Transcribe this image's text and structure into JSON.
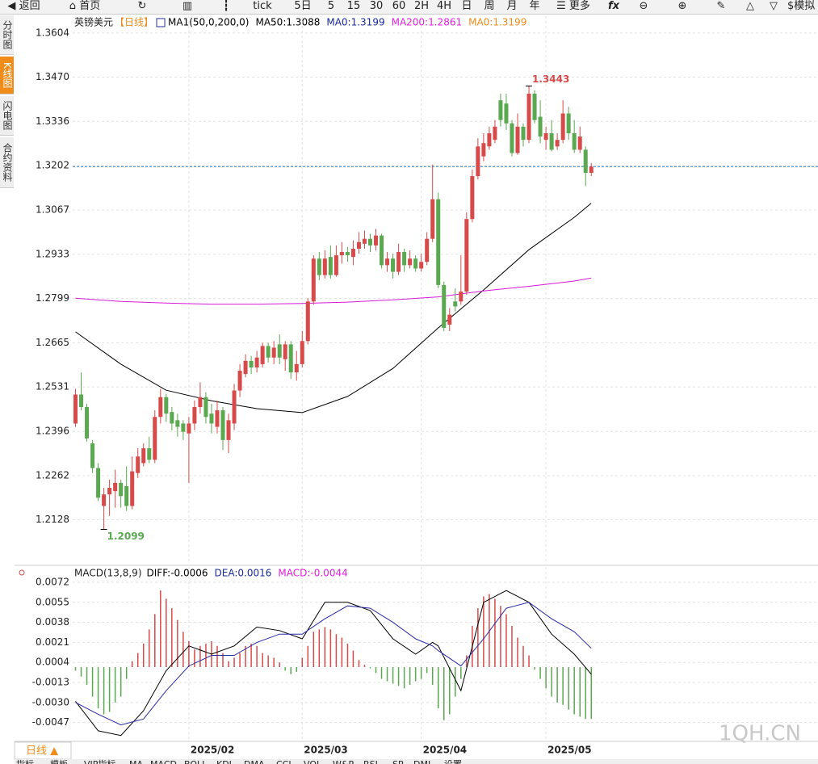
{
  "toolbar": {
    "back": "返回",
    "home": "首页",
    "tick": "tick",
    "periods": [
      "5日",
      "5",
      "15",
      "30",
      "60",
      "2H",
      "4H",
      "日",
      "周",
      "月",
      "年"
    ],
    "more": "更多",
    "sim": "模拟"
  },
  "sidebar": [
    "分时图",
    "K线图",
    "闪电图",
    "合约资料"
  ],
  "chart_data": [
    {
      "type": "candlestick",
      "title": "英镑美元",
      "subtitle": "【日线】",
      "indicator_labels": [
        {
          "text": "MA1(50,0,200,0)",
          "color": "#000000"
        },
        {
          "text": "MA50:1.3088",
          "color": "#000000"
        },
        {
          "text": "MA0:1.3199",
          "color": "#1a2a9a"
        },
        {
          "text": "MA200:1.2861",
          "color": "#e020e0"
        },
        {
          "text": "MA0:1.3199",
          "color": "#f08c1a"
        }
      ],
      "up_color": "#d84a4a",
      "down_color": "#5aa84f",
      "open": [
        1.242,
        1.2508,
        1.247,
        1.236,
        1.2285,
        1.217,
        1.2205,
        1.2215,
        1.224,
        1.223,
        1.217,
        1.227,
        1.23,
        1.2345,
        1.231,
        1.244,
        1.25,
        1.2455,
        1.243,
        1.242,
        1.239,
        1.242,
        1.247,
        1.25,
        1.245,
        1.241,
        1.246,
        1.237,
        1.242,
        1.252,
        1.257,
        1.261,
        1.259,
        1.26,
        1.2655,
        1.262,
        1.266,
        1.2615,
        1.266,
        1.2575,
        1.26,
        1.267,
        1.279,
        1.292,
        1.287,
        1.2925,
        1.287,
        1.293,
        1.294,
        1.2925,
        1.295,
        1.2965,
        1.298,
        1.296,
        1.299,
        1.29,
        1.292,
        1.288,
        1.294,
        1.29,
        1.292,
        1.289,
        1.291,
        1.298,
        1.31,
        1.284,
        1.272,
        1.279,
        1.279,
        1.282,
        1.304,
        1.317,
        1.323,
        1.326,
        1.328,
        1.34,
        1.339,
        1.333,
        1.324,
        1.332,
        1.328,
        1.342,
        1.335,
        1.328,
        1.33,
        1.326,
        1.328,
        1.336,
        1.33,
        1.325,
        1.325,
        1.318
      ],
      "high": [
        1.2525,
        1.2575,
        1.248,
        1.237,
        1.23,
        1.2225,
        1.225,
        1.228,
        1.225,
        1.229,
        1.232,
        1.2345,
        1.236,
        1.238,
        1.246,
        1.2525,
        1.251,
        1.247,
        1.245,
        1.243,
        1.244,
        1.249,
        1.2545,
        1.2515,
        1.248,
        1.249,
        1.247,
        1.245,
        1.254,
        1.26,
        1.263,
        1.2625,
        1.264,
        1.2665,
        1.2665,
        1.267,
        1.269,
        1.267,
        1.267,
        1.264,
        1.27,
        1.28,
        1.293,
        1.294,
        1.2945,
        1.296,
        1.296,
        1.297,
        1.2955,
        1.2975,
        1.3,
        1.3005,
        1.2995,
        1.301,
        1.2995,
        1.294,
        1.2935,
        1.2965,
        1.295,
        1.2945,
        1.293,
        1.2935,
        1.3,
        1.3205,
        1.312,
        1.285,
        1.277,
        1.283,
        1.293,
        1.306,
        1.319,
        1.3285,
        1.33,
        1.332,
        1.334,
        1.342,
        1.342,
        1.334,
        1.336,
        1.333,
        1.3443,
        1.343,
        1.34,
        1.332,
        1.334,
        1.33,
        1.34,
        1.338,
        1.334,
        1.332,
        1.326,
        1.321
      ],
      "low": [
        1.241,
        1.246,
        1.2365,
        1.227,
        1.2185,
        1.2099,
        1.214,
        1.2165,
        1.2165,
        1.2155,
        1.216,
        1.2255,
        1.229,
        1.23,
        1.23,
        1.242,
        1.2425,
        1.24,
        1.238,
        1.237,
        1.224,
        1.24,
        1.245,
        1.242,
        1.239,
        1.239,
        1.234,
        1.233,
        1.24,
        1.25,
        1.256,
        1.257,
        1.2575,
        1.259,
        1.2605,
        1.26,
        1.26,
        1.258,
        1.2555,
        1.255,
        1.259,
        1.266,
        1.278,
        1.2855,
        1.286,
        1.286,
        1.2865,
        1.2905,
        1.291,
        1.29,
        1.2935,
        1.295,
        1.294,
        1.2945,
        1.289,
        1.288,
        1.286,
        1.287,
        1.288,
        1.289,
        1.288,
        1.288,
        1.29,
        1.297,
        1.283,
        1.27,
        1.27,
        1.276,
        1.278,
        1.281,
        1.303,
        1.316,
        1.3215,
        1.325,
        1.327,
        1.332,
        1.331,
        1.323,
        1.3235,
        1.326,
        1.327,
        1.333,
        1.327,
        1.325,
        1.3245,
        1.325,
        1.327,
        1.328,
        1.324,
        1.324,
        1.314,
        1.317
      ],
      "close": [
        1.2508,
        1.247,
        1.2375,
        1.2285,
        1.2195,
        1.2205,
        1.2225,
        1.224,
        1.22,
        1.217,
        1.2275,
        1.232,
        1.2345,
        1.231,
        1.244,
        1.25,
        1.245,
        1.242,
        1.241,
        1.2395,
        1.242,
        1.247,
        1.25,
        1.244,
        1.242,
        1.246,
        1.237,
        1.243,
        1.252,
        1.258,
        1.261,
        1.259,
        1.262,
        1.2655,
        1.262,
        1.265,
        1.262,
        1.266,
        1.2575,
        1.26,
        1.267,
        1.279,
        1.292,
        1.287,
        1.292,
        1.287,
        1.293,
        1.294,
        1.293,
        1.295,
        1.297,
        1.298,
        1.296,
        1.299,
        1.29,
        1.292,
        1.288,
        1.294,
        1.29,
        1.292,
        1.289,
        1.291,
        1.298,
        1.31,
        1.284,
        1.271,
        1.275,
        1.2775,
        1.282,
        1.304,
        1.317,
        1.326,
        1.327,
        1.33,
        1.332,
        1.334,
        1.333,
        1.324,
        1.332,
        1.328,
        1.342,
        1.334,
        1.329,
        1.33,
        1.325,
        1.328,
        1.336,
        1.33,
        1.325,
        1.329,
        1.318,
        1.3199
      ],
      "ma_lines": [
        {
          "color": "#000000",
          "x": [
            0,
            8,
            16,
            24,
            32,
            40,
            48,
            56,
            64,
            72,
            80,
            88,
            91
          ],
          "values": [
            1.2698,
            1.26,
            1.2521,
            1.2489,
            1.2465,
            1.2453,
            1.2502,
            1.2587,
            1.271,
            1.2825,
            1.2947,
            1.3045,
            1.3088
          ]
        },
        {
          "color": "#d81ad8",
          "x": [
            0,
            8,
            16,
            24,
            32,
            40,
            48,
            56,
            64,
            72,
            80,
            88,
            91
          ],
          "values": [
            1.28,
            1.279,
            1.2785,
            1.2782,
            1.2782,
            1.2784,
            1.2788,
            1.2795,
            1.2804,
            1.2822,
            1.2836,
            1.2852,
            1.2861
          ]
        }
      ],
      "price_line": 1.3199,
      "price_line_color": "#2a7fc0",
      "high_mark": {
        "x": 80,
        "value": 1.3443,
        "color": "#d84a4a"
      },
      "low_mark": {
        "x": 5,
        "value": 1.2099,
        "color": "#5aa84f"
      },
      "xlim": [
        -0.5,
        131
      ],
      "ylim": [
        1.1995,
        1.3655
      ],
      "yticks": [
        1.3604,
        {
          "value": 1.347,
          "label": "1.3470"
        },
        1.3336,
        1.3202,
        1.3067,
        1.2933,
        1.2799,
        1.2665,
        1.2531,
        1.2396,
        1.2262,
        1.2128
      ],
      "xticks": [
        {
          "value": 20,
          "label": "2025/02"
        },
        {
          "value": 40,
          "label": "2025/03"
        },
        {
          "value": 61,
          "label": "2025/04"
        },
        {
          "value": 83,
          "label": "2025/05"
        }
      ],
      "grid": true
    },
    {
      "type": "macd",
      "title": "MACD(13,8,9)",
      "indicator_labels": [
        {
          "text": "DIFF:-0.0006",
          "color": "#000000"
        },
        {
          "text": "DEA:0.0016",
          "color": "#1a2a9a"
        },
        {
          "text": "MACD:-0.0044",
          "color": "#e020e0"
        }
      ],
      "up_color": "#d84a4a",
      "down_color": "#5aa84f",
      "histogram": [
        -0.0003,
        -0.0008,
        -0.0015,
        -0.0025,
        -0.0035,
        -0.004,
        -0.0038,
        -0.003,
        -0.0025,
        -0.001,
        0.0005,
        0.0012,
        0.002,
        0.0032,
        0.0045,
        0.0065,
        0.0058,
        0.005,
        0.004,
        0.003,
        0.0022,
        0.0015,
        0.0018,
        0.002,
        0.0022,
        0.0018,
        0.0012,
        0.0005,
        0.0008,
        0.0012,
        0.0018,
        0.002,
        0.0018,
        0.0012,
        0.001,
        0.0008,
        0.0004,
        -0.0003,
        -0.0006,
        -0.0004,
        0.0008,
        0.0018,
        0.003,
        0.0032,
        0.0034,
        0.0032,
        0.0028,
        0.0025,
        0.002,
        0.0014,
        0.0006,
        0.0002,
        -0.0001,
        -0.0005,
        -0.001,
        -0.0012,
        -0.0014,
        -0.0016,
        -0.0018,
        -0.0015,
        -0.0012,
        -0.001,
        -0.0005,
        -0.0015,
        -0.0035,
        -0.0045,
        -0.004,
        -0.0025,
        -0.001,
        0.001,
        0.0035,
        0.005,
        0.006,
        0.0062,
        0.0058,
        0.0052,
        0.0045,
        0.0035,
        0.0025,
        0.0018,
        0.001,
        -0.0002,
        -0.001,
        -0.0018,
        -0.0025,
        -0.003,
        -0.0032,
        -0.0036,
        -0.004,
        -0.0042,
        -0.0044,
        -0.0044
      ],
      "lines": [
        {
          "color": "#000000",
          "x": [
            0,
            4,
            8,
            12,
            16,
            20,
            24,
            28,
            32,
            36,
            40,
            44,
            48,
            52,
            56,
            60,
            63,
            64,
            68,
            72,
            76,
            80,
            84,
            88,
            91
          ],
          "values": [
            -0.0029,
            -0.0054,
            -0.0058,
            -0.0037,
            -0.0003,
            0.0018,
            0.0011,
            0.0018,
            0.0034,
            0.0031,
            0.0024,
            0.0055,
            0.0055,
            0.0048,
            0.0024,
            0.0011,
            0.0021,
            0.0018,
            -0.002,
            0.0055,
            0.0065,
            0.0055,
            0.0028,
            0.0011,
            -0.0006
          ]
        },
        {
          "color": "#2a2aa6",
          "x": [
            0,
            4,
            8,
            12,
            16,
            20,
            24,
            28,
            32,
            36,
            40,
            44,
            48,
            52,
            56,
            60,
            63,
            64,
            68,
            72,
            76,
            80,
            84,
            88,
            91
          ],
          "values": [
            -0.003,
            -0.004,
            -0.0049,
            -0.0044,
            -0.002,
            0.0001,
            0.001,
            0.001,
            0.0021,
            0.0028,
            0.0028,
            0.0041,
            0.0052,
            0.005,
            0.0038,
            0.0024,
            0.0018,
            0.0014,
            0.0001,
            0.0024,
            0.005,
            0.0055,
            0.0041,
            0.003,
            0.0016
          ]
        }
      ],
      "xlim": [
        -0.5,
        131
      ],
      "ylim": [
        -0.0063,
        0.0085
      ],
      "yticks": [
        0.0072,
        0.0055,
        0.0038,
        0.0021,
        0.0004,
        -0.0013,
        {
          "value": -0.003,
          "label": "-0.0030"
        },
        -0.0047
      ],
      "grid": true
    }
  ],
  "footer": {
    "period_tab": "日线 ▲",
    "watermark": "1QH.CN",
    "tabs": [
      "指标",
      "模板",
      "VIP指标",
      "MA",
      "MACD",
      "BOLL",
      "KDJ",
      "DMA",
      "CCI",
      "VOL",
      "W&R",
      "RSI",
      "SR",
      "DMI",
      "设置"
    ]
  }
}
